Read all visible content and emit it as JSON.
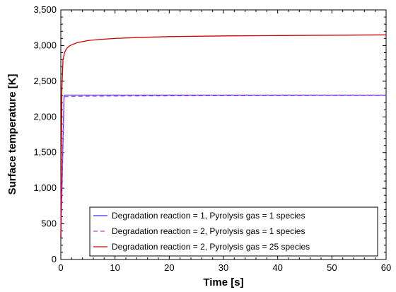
{
  "chart_data": {
    "type": "line",
    "title": "",
    "xlabel": "Time [s]",
    "ylabel": "Surface temperature [K]",
    "xlim": [
      0,
      60
    ],
    "ylim": [
      0,
      3500
    ],
    "xticks": [
      "0",
      "10",
      "20",
      "30",
      "40",
      "50",
      "60"
    ],
    "yticks": [
      "0",
      "500",
      "1,000",
      "1,500",
      "2,000",
      "2,500",
      "3,000",
      "3,500"
    ],
    "xtick_values": [
      0,
      10,
      20,
      30,
      40,
      50,
      60
    ],
    "ytick_values": [
      0,
      500,
      1000,
      1500,
      2000,
      2500,
      3000,
      3500
    ],
    "grid": false,
    "legend_position": "bottom-right",
    "series": [
      {
        "name": "Degradation reaction = 1, Pyrolysis gas = 1 species",
        "color": "#3333ff",
        "dash": "solid",
        "x": [
          0,
          0.6,
          1,
          5,
          10,
          20,
          30,
          40,
          50,
          60
        ],
        "y": [
          300,
          2300,
          2305,
          2305,
          2305,
          2305,
          2305,
          2305,
          2305,
          2305
        ]
      },
      {
        "name": "Degradation reaction = 2, Pyrolysis gas = 1 species",
        "color": "#cc44cc",
        "dash": "dashed",
        "x": [
          0,
          0.6,
          1,
          5,
          10,
          20,
          30,
          40,
          50,
          60
        ],
        "y": [
          300,
          2280,
          2285,
          2290,
          2292,
          2295,
          2297,
          2298,
          2299,
          2300
        ]
      },
      {
        "name": "Degradation reaction = 2, Pyrolysis gas = 25 species",
        "color": "#cc0000",
        "dash": "solid",
        "x": [
          0,
          0.1,
          0.2,
          0.4,
          0.7,
          1,
          1.5,
          2,
          3,
          5,
          7,
          10,
          15,
          20,
          30,
          40,
          50,
          60
        ],
        "y": [
          300,
          1600,
          2400,
          2800,
          2900,
          2950,
          2990,
          3010,
          3040,
          3070,
          3085,
          3100,
          3115,
          3125,
          3135,
          3140,
          3145,
          3150
        ]
      }
    ]
  }
}
